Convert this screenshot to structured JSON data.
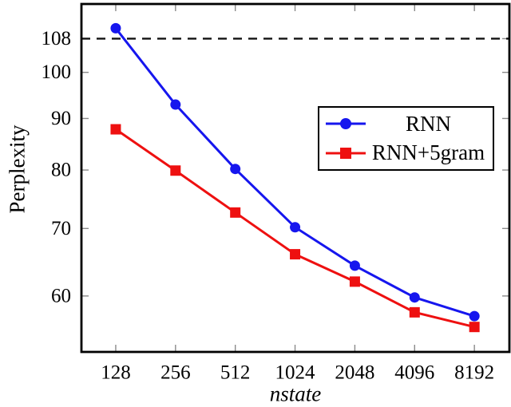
{
  "figure": {
    "background": "#ffffff",
    "axis_color": "#000000",
    "tick_color": "#8a8a8a"
  },
  "chart_data": {
    "type": "line",
    "title": "",
    "xlabel": "nstate",
    "ylabel": "Perplexity",
    "x_scale": "log2",
    "y_scale": "log10",
    "xlim": [
      86,
      12294
    ],
    "ylim": [
      52.8,
      116.9
    ],
    "grid": false,
    "legend_position": "inside-upper-right",
    "x": [
      128,
      256,
      512,
      1024,
      2048,
      4096,
      8192
    ],
    "x_tick_labels": [
      "128",
      "256",
      "512",
      "1024",
      "2048",
      "4096",
      "8192"
    ],
    "y_ticks": [
      108,
      100,
      90,
      80,
      70,
      60
    ],
    "baseline": {
      "value": 108,
      "style": "dashed",
      "color": "#111111"
    },
    "series": [
      {
        "name": "RNN",
        "marker": "circle",
        "color": "#1616ee",
        "values": [
          110.6,
          92.9,
          80.2,
          70.2,
          64.3,
          59.8,
          57.3
        ]
      },
      {
        "name": "RNN+5gram",
        "marker": "square",
        "color": "#ee1010",
        "values": [
          87.8,
          79.9,
          72.6,
          66.0,
          62.0,
          57.8,
          55.9
        ]
      }
    ]
  }
}
